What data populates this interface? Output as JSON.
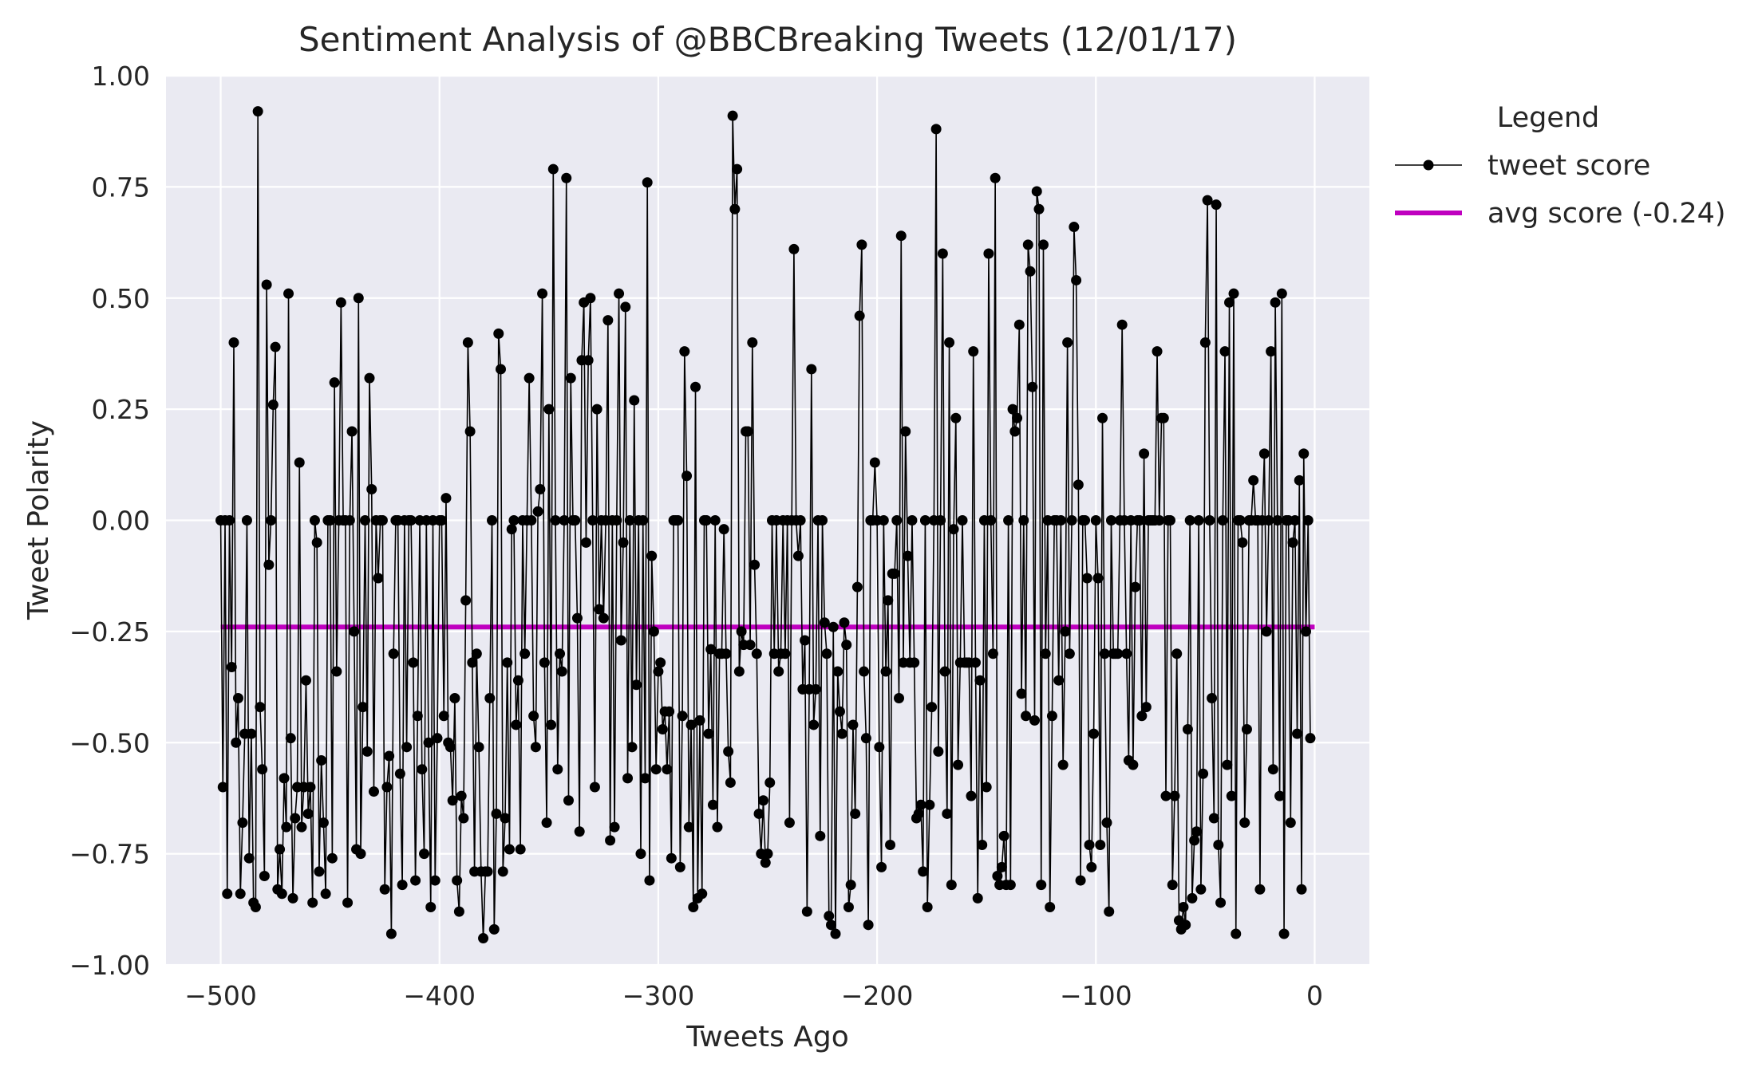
{
  "chart_data": {
    "type": "line",
    "title": "Sentiment Analysis of @BBCBreaking Tweets (12/01/17)",
    "xlabel": "Tweets Ago",
    "ylabel": "Tweet Polarity",
    "xlim": [
      -525,
      25
    ],
    "ylim": [
      -1.0,
      1.0
    ],
    "xticks": [
      -500,
      -400,
      -300,
      -200,
      -100,
      0
    ],
    "xtick_labels": [
      "−500",
      "−400",
      "−300",
      "−200",
      "−100",
      "0"
    ],
    "yticks": [
      1.0,
      0.75,
      0.5,
      0.25,
      0.0,
      -0.25,
      -0.5,
      -0.75,
      -1.0
    ],
    "ytick_labels": [
      "1.00",
      "0.75",
      "0.50",
      "0.25",
      "0.00",
      "−0.25",
      "−0.50",
      "−0.75",
      "−1.00"
    ],
    "grid": true,
    "background": "#eaeaf2",
    "legend": {
      "title": "Legend",
      "placement": "outside upper right"
    },
    "series": [
      {
        "name": "tweet score",
        "color": "#000000",
        "marker": "circle",
        "x_start": -500,
        "x_step": 1,
        "values": [
          0.0,
          -0.6,
          0.0,
          -0.84,
          0.0,
          -0.33,
          0.4,
          -0.5,
          -0.4,
          -0.84,
          -0.68,
          -0.48,
          0.0,
          -0.76,
          -0.48,
          -0.86,
          -0.87,
          0.92,
          -0.42,
          -0.56,
          -0.8,
          0.53,
          -0.1,
          0.0,
          0.26,
          0.39,
          -0.83,
          -0.74,
          -0.84,
          -0.58,
          -0.69,
          0.51,
          -0.49,
          -0.85,
          -0.67,
          -0.6,
          0.13,
          -0.69,
          -0.6,
          -0.36,
          -0.66,
          -0.6,
          -0.86,
          0.0,
          -0.05,
          -0.79,
          -0.54,
          -0.68,
          -0.84,
          0.0,
          0.0,
          -0.76,
          0.31,
          -0.34,
          0.0,
          0.49,
          0.0,
          0.0,
          -0.86,
          0.0,
          0.2,
          -0.25,
          -0.74,
          0.5,
          -0.75,
          -0.42,
          0.0,
          -0.52,
          0.32,
          0.07,
          -0.61,
          0.0,
          -0.13,
          0.0,
          0.0,
          -0.83,
          -0.6,
          -0.53,
          -0.93,
          -0.3,
          0.0,
          0.0,
          -0.57,
          -0.82,
          0.0,
          -0.51,
          0.0,
          0.0,
          -0.32,
          -0.81,
          -0.44,
          0.0,
          -0.56,
          -0.75,
          0.0,
          -0.5,
          -0.87,
          0.0,
          -0.81,
          -0.49,
          0.0,
          0.0,
          -0.44,
          0.05,
          -0.5,
          -0.51,
          -0.63,
          -0.4,
          -0.81,
          -0.88,
          -0.62,
          -0.67,
          -0.18,
          0.4,
          0.2,
          -0.32,
          -0.79,
          -0.3,
          -0.51,
          -0.79,
          -0.94,
          -0.79,
          -0.79,
          -0.4,
          0.0,
          -0.92,
          -0.66,
          0.42,
          0.34,
          -0.79,
          -0.67,
          -0.32,
          -0.74,
          -0.02,
          0.0,
          -0.46,
          -0.36,
          -0.74,
          0.0,
          -0.3,
          0.0,
          0.32,
          0.0,
          -0.44,
          -0.51,
          0.02,
          0.07,
          0.51,
          -0.32,
          -0.68,
          0.25,
          -0.46,
          0.79,
          0.0,
          -0.56,
          -0.3,
          -0.34,
          0.0,
          0.77,
          -0.63,
          0.32,
          0.0,
          0.0,
          -0.22,
          -0.7,
          0.36,
          0.49,
          -0.05,
          0.36,
          0.5,
          0.0,
          -0.6,
          0.25,
          -0.2,
          0.0,
          -0.22,
          0.0,
          0.45,
          -0.72,
          0.0,
          -0.69,
          0.0,
          0.51,
          -0.27,
          -0.05,
          0.48,
          -0.58,
          0.0,
          -0.51,
          0.27,
          -0.37,
          0.0,
          -0.75,
          0.0,
          -0.58,
          0.76,
          -0.81,
          -0.08,
          -0.25,
          -0.56,
          -0.34,
          -0.32,
          -0.47,
          -0.43,
          -0.56,
          -0.43,
          -0.76,
          0.0,
          0.0,
          0.0,
          -0.78,
          -0.44,
          0.38,
          0.1,
          -0.69,
          -0.46,
          -0.87,
          0.3,
          -0.85,
          -0.45,
          -0.84,
          0.0,
          0.0,
          -0.48,
          -0.29,
          -0.64,
          0.0,
          -0.69,
          -0.3,
          -0.3,
          -0.02,
          -0.3,
          -0.52,
          -0.59,
          0.91,
          0.7,
          0.79,
          -0.34,
          -0.25,
          -0.28,
          0.2,
          0.2,
          -0.28,
          0.4,
          -0.1,
          -0.3,
          -0.66,
          -0.75,
          -0.63,
          -0.77,
          -0.75,
          -0.59,
          0.0,
          -0.3,
          0.0,
          -0.34,
          -0.3,
          0.0,
          -0.3,
          0.0,
          -0.68,
          0.0,
          0.61,
          0.0,
          -0.08,
          0.0,
          -0.38,
          -0.27,
          -0.88,
          -0.38,
          0.34,
          -0.46,
          -0.38,
          0.0,
          -0.71,
          0.0,
          -0.23,
          -0.3,
          -0.89,
          -0.91,
          -0.24,
          -0.93,
          -0.34,
          -0.43,
          -0.48,
          -0.23,
          -0.28,
          -0.87,
          -0.82,
          -0.46,
          -0.66,
          -0.15,
          0.46,
          0.62,
          -0.34,
          -0.49,
          -0.91,
          0.0,
          0.0,
          0.13,
          0.0,
          -0.51,
          -0.78,
          0.0,
          -0.34,
          -0.18,
          -0.73,
          -0.12,
          -0.12,
          0.0,
          -0.4,
          0.64,
          -0.32,
          0.2,
          -0.08,
          -0.32,
          0.0,
          -0.32,
          -0.67,
          -0.66,
          -0.64,
          -0.79,
          0.0,
          -0.87,
          -0.64,
          -0.42,
          0.0,
          0.88,
          -0.52,
          0.0,
          0.6,
          -0.34,
          -0.66,
          0.4,
          -0.82,
          -0.02,
          0.23,
          -0.55,
          -0.32,
          0.0,
          -0.32,
          -0.32,
          -0.32,
          -0.62,
          0.38,
          -0.32,
          -0.85,
          -0.36,
          -0.73,
          0.0,
          -0.6,
          0.6,
          0.0,
          -0.3,
          0.77,
          -0.8,
          -0.82,
          -0.78,
          -0.71,
          -0.82,
          0.0,
          -0.82,
          0.25,
          0.2,
          0.23,
          0.44,
          -0.39,
          0.0,
          -0.44,
          0.62,
          0.56,
          0.3,
          -0.45,
          0.74,
          0.7,
          -0.82,
          0.62,
          -0.3,
          0.0,
          -0.87,
          -0.44,
          0.0,
          0.0,
          -0.36,
          0.0,
          -0.55,
          -0.25,
          0.4,
          -0.3,
          0.0,
          0.66,
          0.54,
          0.08,
          -0.81,
          0.0,
          0.0,
          -0.13,
          -0.73,
          -0.78,
          -0.48,
          0.0,
          -0.13,
          -0.73,
          0.23,
          -0.3,
          -0.68,
          -0.88,
          0.0,
          -0.3,
          -0.3,
          -0.3,
          0.0,
          0.44,
          0.0,
          -0.3,
          -0.54,
          0.0,
          -0.55,
          -0.15,
          0.0,
          0.0,
          -0.44,
          0.15,
          -0.42,
          0.0,
          0.0,
          0.0,
          0.0,
          0.38,
          0.0,
          0.23,
          0.23,
          -0.62,
          0.0,
          0.0,
          -0.82,
          -0.62,
          -0.3,
          -0.9,
          -0.92,
          -0.87,
          -0.91,
          -0.47,
          0.0,
          -0.85,
          -0.72,
          -0.7,
          0.0,
          -0.83,
          -0.57,
          0.4,
          0.72,
          0.0,
          -0.4,
          -0.67,
          0.71,
          -0.73,
          -0.86,
          0.0,
          0.38,
          -0.55,
          0.49,
          -0.62,
          0.51,
          -0.93,
          0.0,
          0.0,
          -0.05,
          -0.68,
          -0.47,
          0.0,
          0.0,
          0.09,
          0.0,
          0.0,
          -0.83,
          0.0,
          0.15,
          -0.25,
          0.0,
          0.38,
          -0.56,
          0.49,
          0.0,
          -0.62,
          0.51,
          -0.93,
          0.0,
          0.0,
          -0.68,
          -0.05,
          0.0,
          -0.48,
          0.09,
          -0.83,
          0.15,
          -0.25,
          0.0,
          -0.49
        ]
      },
      {
        "name": "avg score (-0.24)",
        "color": "#bf00bf",
        "constant": -0.24,
        "x_range": [
          -500,
          0
        ]
      }
    ]
  }
}
